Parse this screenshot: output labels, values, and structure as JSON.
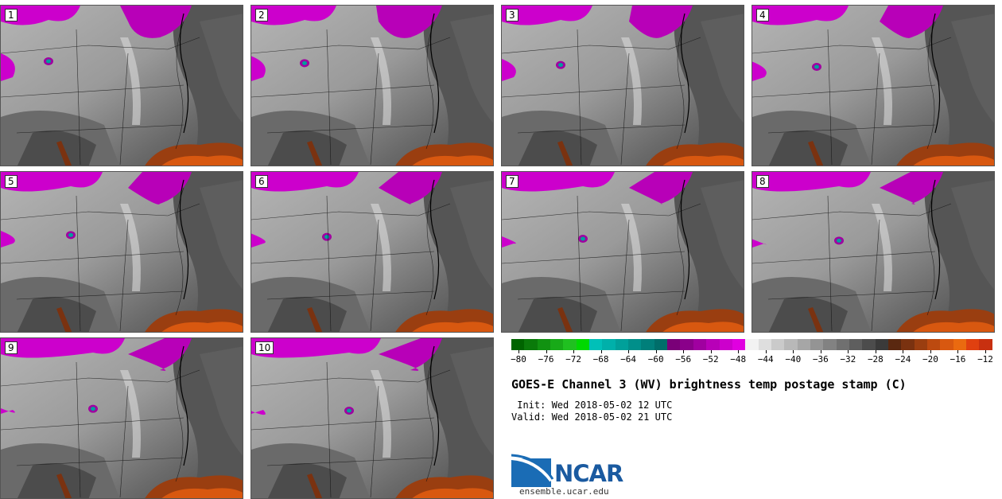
{
  "panels": [
    {
      "label": "1"
    },
    {
      "label": "2"
    },
    {
      "label": "3"
    },
    {
      "label": "4"
    },
    {
      "label": "5"
    },
    {
      "label": "6"
    },
    {
      "label": "7"
    },
    {
      "label": "8"
    },
    {
      "label": "9"
    },
    {
      "label": "10"
    }
  ],
  "colorbar": {
    "ticks": [
      "−80",
      "−76",
      "−72",
      "−68",
      "−64",
      "−60",
      "−56",
      "−52",
      "−48",
      "−44",
      "−40",
      "−36",
      "−32",
      "−28",
      "−24",
      "−20",
      "−16",
      "−12"
    ],
    "colors": [
      "#006400",
      "#0a7a0a",
      "#119211",
      "#18aa18",
      "#20c020",
      "#00d800",
      "#00c0b8",
      "#00b0aa",
      "#00a09a",
      "#008f8a",
      "#007f7a",
      "#006e6a",
      "#7a0078",
      "#8a008a",
      "#a000a0",
      "#b800b8",
      "#cc00cc",
      "#e000e0",
      "#f2f2f2",
      "#dedede",
      "#cacaca",
      "#b8b8b8",
      "#a6a6a6",
      "#949494",
      "#828282",
      "#707070",
      "#5e5e5e",
      "#4c4c4c",
      "#3a3a3a",
      "#5a2810",
      "#7a3210",
      "#9a3e10",
      "#bc4a10",
      "#d85810",
      "#ea6a10",
      "#e04010",
      "#c83010"
    ]
  },
  "title": "GOES-E Channel 3 (WV) brightness temp postage stamp (C)",
  "init_text": " Init: Wed 2018-05-02 12 UTC",
  "valid_text": "Valid: Wed 2018-05-02 21 UTC",
  "logo_text": "NCAR",
  "site": "ensemble.ucar.edu"
}
